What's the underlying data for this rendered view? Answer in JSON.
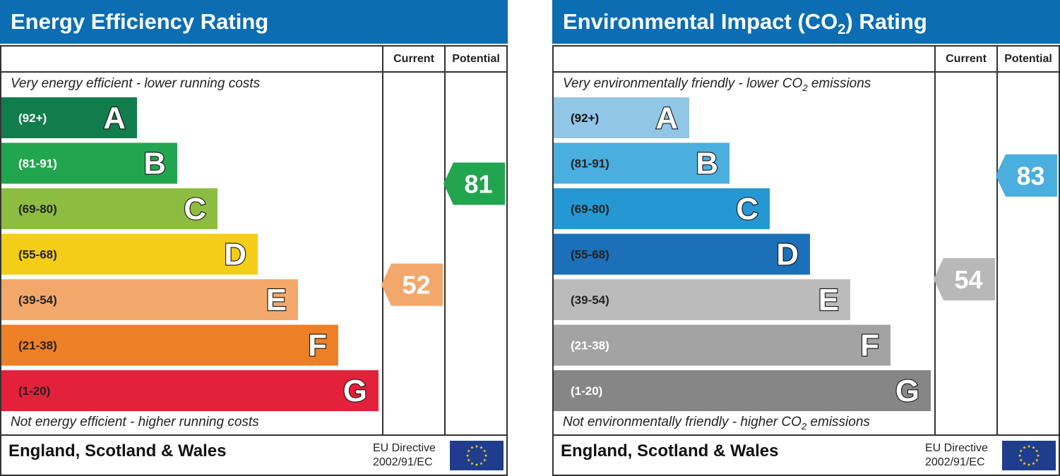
{
  "panels": [
    {
      "title": "Energy Efficiency Rating",
      "col_current": "Current",
      "col_potential": "Potential",
      "top_text": "Very energy efficient - lower running costs",
      "bottom_text": "Not energy efficient - higher running costs",
      "region": "England, Scotland & Wales",
      "directive_line1": "EU Directive",
      "directive_line2": "2002/91/EC"
    },
    {
      "title": "Environmental Impact (CO",
      "title_sub": "2",
      "title_end": ") Rating",
      "col_current": "Current",
      "col_potential": "Potential",
      "top_text": "Very environmentally friendly - lower CO",
      "top_sub": "2",
      "top_end": " emissions",
      "bottom_text": "Not environmentally friendly - higher CO",
      "bottom_sub": "2",
      "bottom_end": " emissions",
      "region": "England, Scotland & Wales",
      "directive_line1": "EU Directive",
      "directive_line2": "2002/91/EC"
    }
  ],
  "chart_data": [
    {
      "type": "bar",
      "bands": [
        {
          "range": "(92+)",
          "letter": "A",
          "color": "#117d4c",
          "label_color": "#ffffff"
        },
        {
          "range": "(81-91)",
          "letter": "B",
          "color": "#22a54f",
          "label_color": "#ffffff"
        },
        {
          "range": "(69-80)",
          "letter": "C",
          "color": "#8dbd40",
          "label_color": "#222222"
        },
        {
          "range": "(55-68)",
          "letter": "D",
          "color": "#f4cd16",
          "label_color": "#222222"
        },
        {
          "range": "(39-54)",
          "letter": "E",
          "color": "#f2a86a",
          "label_color": "#222222"
        },
        {
          "range": "(21-38)",
          "letter": "F",
          "color": "#ed7f27",
          "label_color": "#222222"
        },
        {
          "range": "(1-20)",
          "letter": "G",
          "color": "#e4213a",
          "label_color": "#222222"
        }
      ],
      "current": {
        "value": 52,
        "color": "#f2a86a"
      },
      "potential": {
        "value": 81,
        "color": "#22a54f"
      }
    },
    {
      "type": "bar",
      "bands": [
        {
          "range": "(92+)",
          "letter": "A",
          "color": "#91c6e7",
          "label_color": "#111111"
        },
        {
          "range": "(81-91)",
          "letter": "B",
          "color": "#4aaedf",
          "label_color": "#222222"
        },
        {
          "range": "(69-80)",
          "letter": "C",
          "color": "#2598d3",
          "label_color": "#222222"
        },
        {
          "range": "(55-68)",
          "letter": "D",
          "color": "#1b70b9",
          "label_color": "#222222"
        },
        {
          "range": "(39-54)",
          "letter": "E",
          "color": "#bbbbbb",
          "label_color": "#222222"
        },
        {
          "range": "(21-38)",
          "letter": "F",
          "color": "#a3a3a3",
          "label_color": "#ffffff"
        },
        {
          "range": "(1-20)",
          "letter": "G",
          "color": "#868686",
          "label_color": "#ffffff"
        }
      ],
      "current": {
        "value": 54,
        "color": "#b8b8b8"
      },
      "potential": {
        "value": 83,
        "color": "#4aaedf"
      }
    }
  ]
}
